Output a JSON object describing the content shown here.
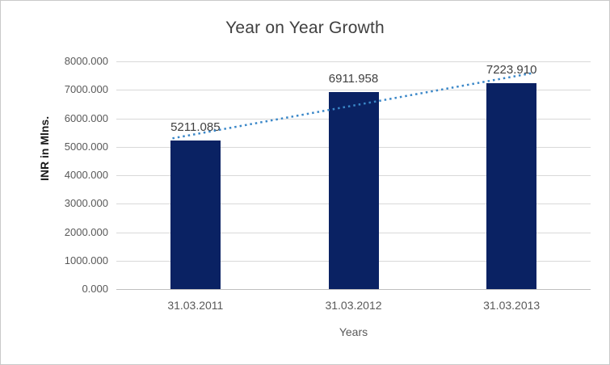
{
  "chart_data": {
    "type": "bar",
    "title": "Year on Year Growth",
    "categories": [
      "31.03.2011",
      "31.03.2012",
      "31.03.2013"
    ],
    "values": [
      5211.085,
      6911.958,
      7223.91
    ],
    "data_labels": [
      "5211.085",
      "6911.958",
      "7223.910"
    ],
    "xlabel": "Years",
    "ylabel": "INR in Mlns.",
    "ylim": [
      0,
      8000
    ],
    "ytick_step": 1000,
    "ytick_labels": [
      "0.000",
      "1000.000",
      "2000.000",
      "3000.000",
      "4000.000",
      "5000.000",
      "6000.000",
      "7000.000",
      "8000.000"
    ],
    "grid": true,
    "legend_position": "none",
    "bar_color": "#0a2263",
    "trendline": {
      "type": "linear",
      "style": "dotted",
      "color": "#3a87c8"
    }
  }
}
